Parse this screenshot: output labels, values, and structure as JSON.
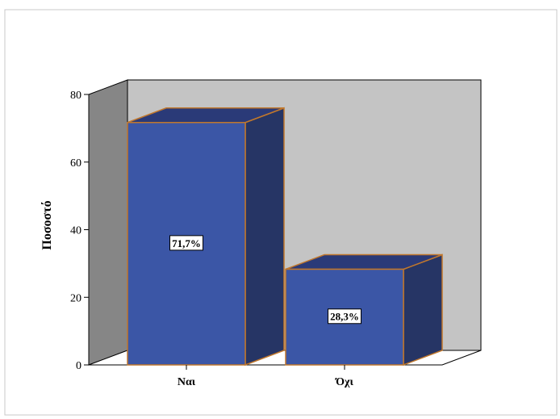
{
  "chart_data": {
    "type": "bar",
    "style": "3d",
    "categories": [
      "Ναι",
      "Όχι"
    ],
    "values": [
      71.7,
      28.3
    ],
    "data_labels": [
      "71,7%",
      "28,3%"
    ],
    "ylabel": "Ποσοστό",
    "xlabel": "",
    "ylim": [
      0,
      80
    ],
    "yticks": [
      0,
      20,
      40,
      60,
      80
    ],
    "grid": false,
    "legend": "none",
    "colors": {
      "bar_front": "#3b56a6",
      "bar_top": "#2a3a78",
      "bar_side": "#263565",
      "bar_edge": "#c0772c",
      "back_wall": "#c4c4c4",
      "side_wall": "#868686",
      "floor": "#ffffff",
      "frame_border": "#c8c8c8"
    }
  }
}
